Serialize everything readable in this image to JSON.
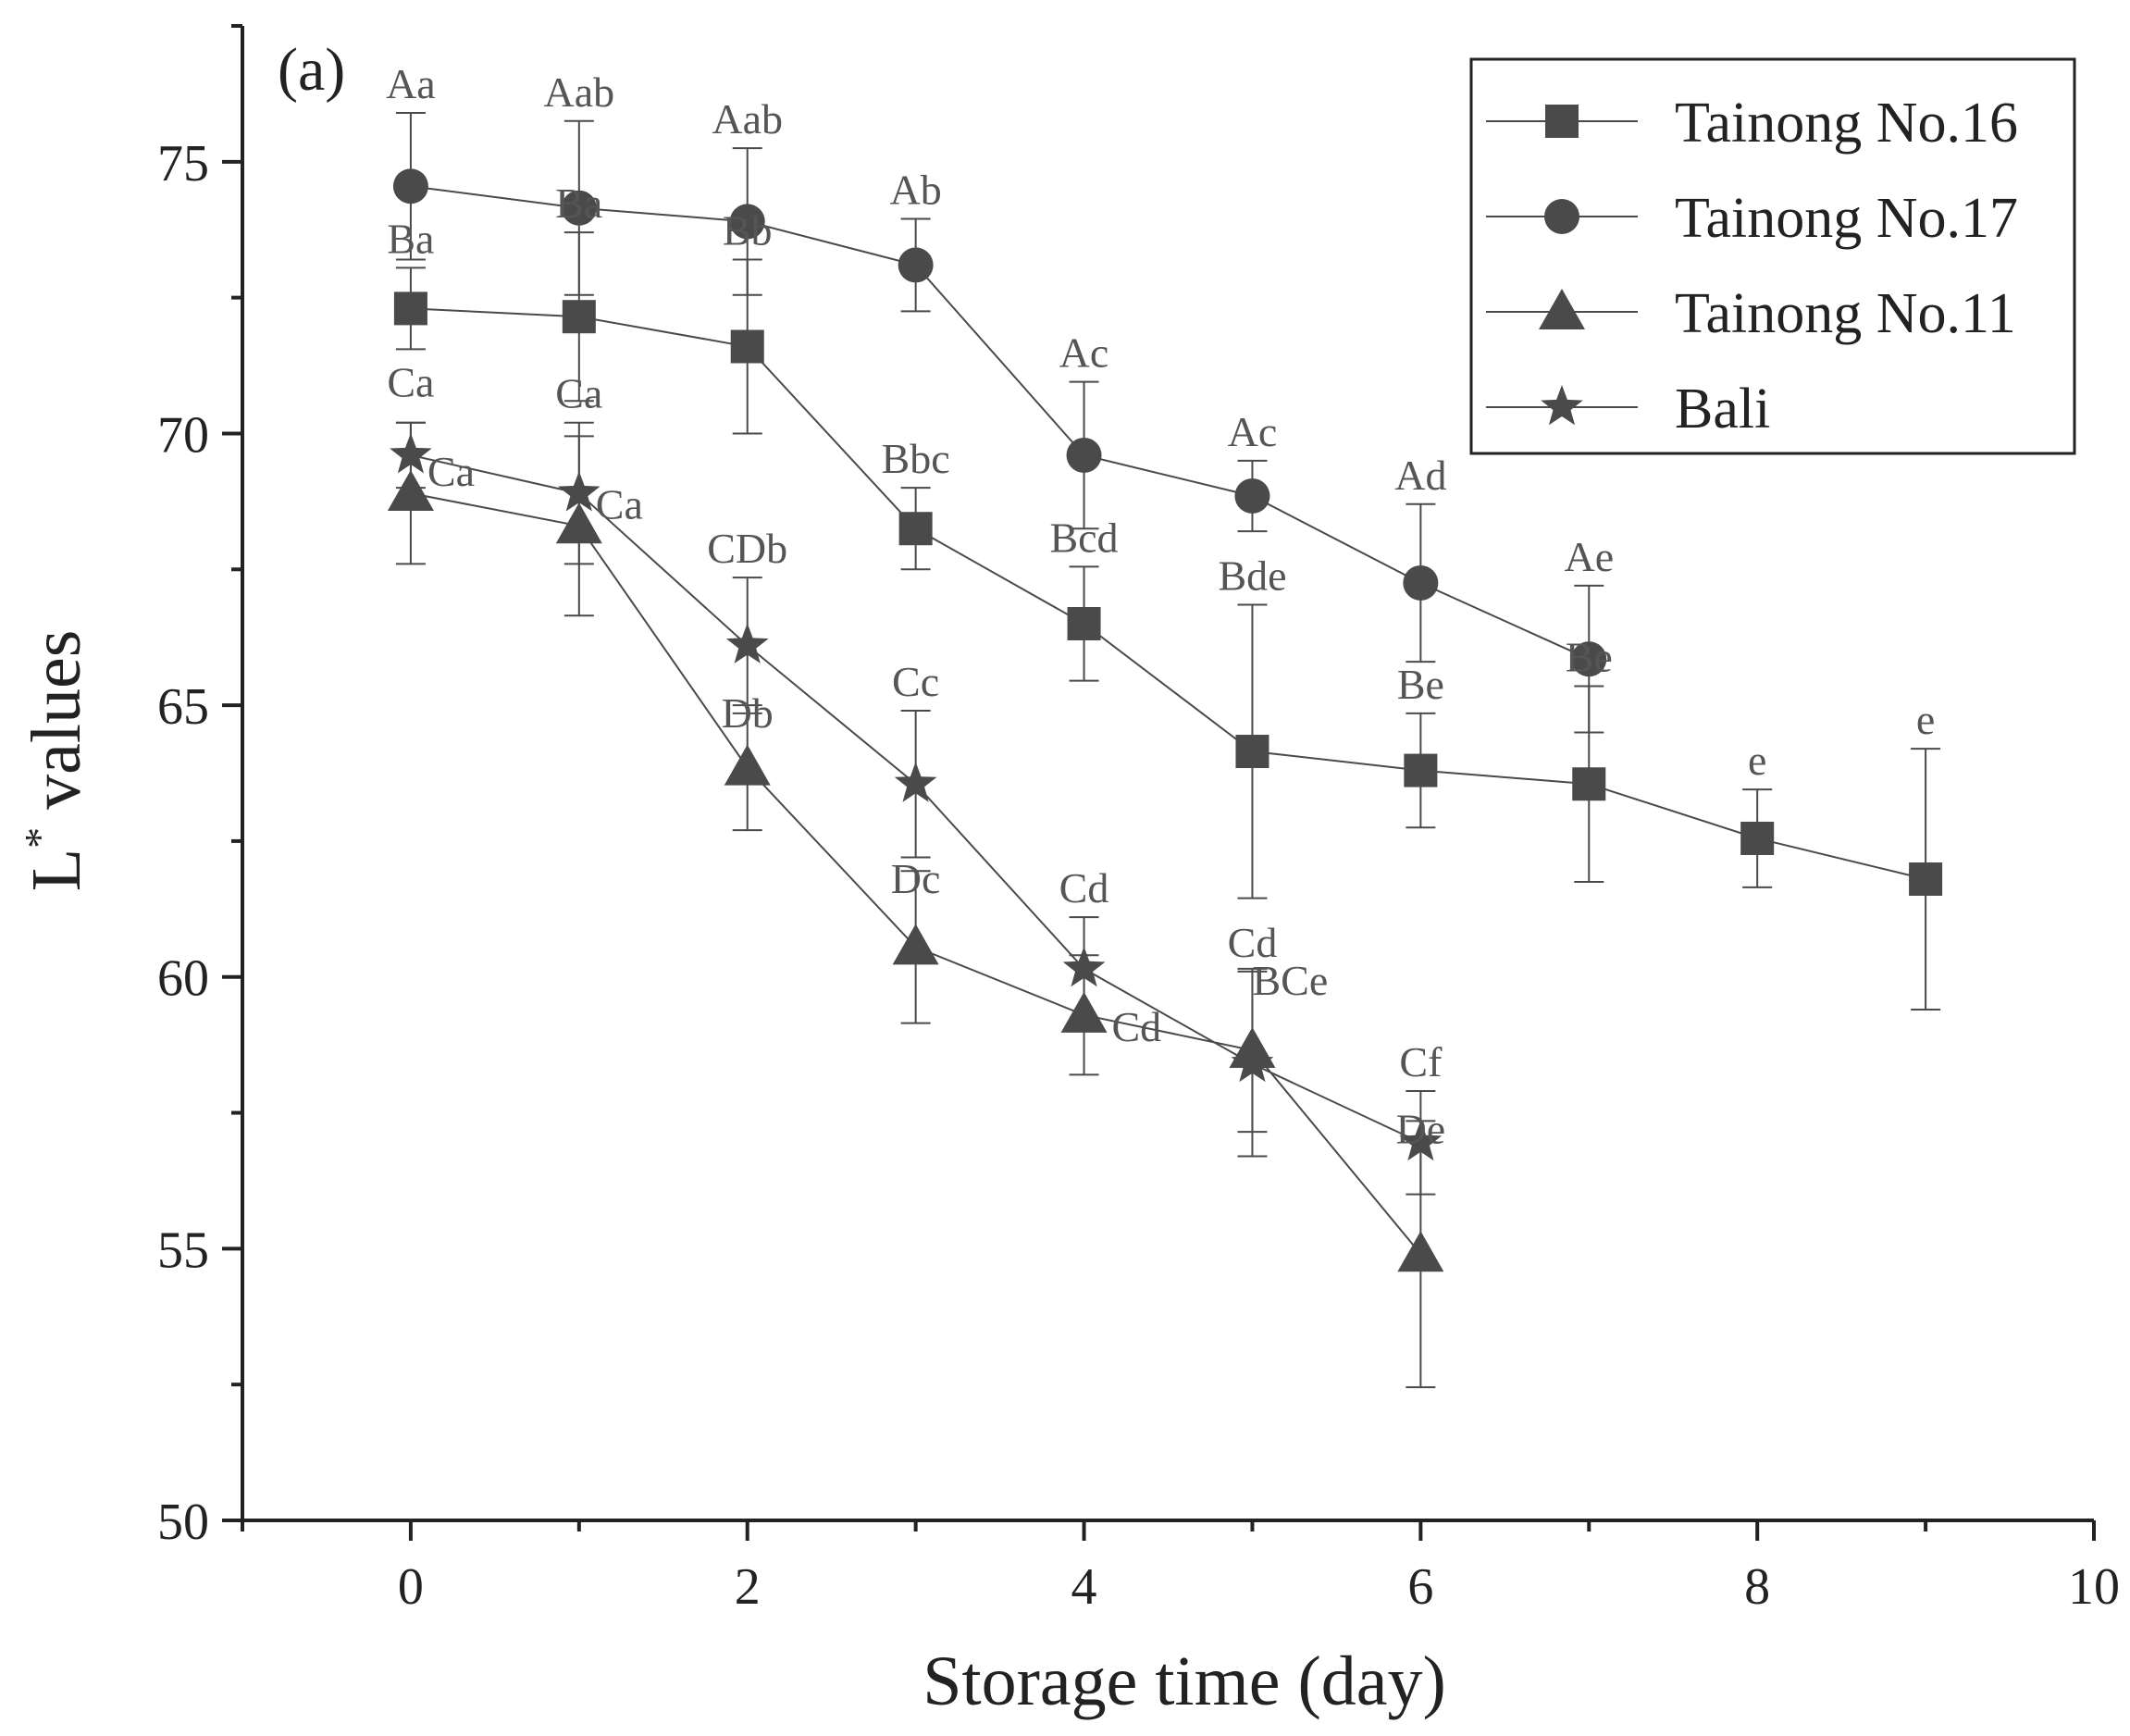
{
  "chart_data": {
    "type": "line",
    "panel_label": "(a)",
    "xlabel": "Storage time (day)",
    "ylabel": "L",
    "ylabel_superscript": "*",
    "ylabel_suffix": " values",
    "xlim": [
      -1,
      10
    ],
    "ylim": [
      50,
      77.5
    ],
    "xticks": [
      0,
      2,
      4,
      6,
      8,
      10
    ],
    "xtick_labels": [
      "0",
      "2",
      "4",
      "6",
      "8",
      "10"
    ],
    "xminor": [
      -1,
      1,
      3,
      5,
      7,
      9
    ],
    "yticks": [
      50,
      55,
      60,
      65,
      70,
      75
    ],
    "ytick_labels": [
      "50",
      "55",
      "60",
      "65",
      "70",
      "75"
    ],
    "yminor": [
      52.5,
      57.5,
      62.5,
      67.5,
      72.5,
      77.5
    ],
    "legend_position": "top-right",
    "series": [
      {
        "name": "Tainong No.16",
        "marker": "square",
        "x": [
          0,
          1,
          2,
          3,
          4,
          5,
          6,
          7,
          8,
          9
        ],
        "y": [
          72.3,
          72.15,
          71.6,
          68.25,
          66.5,
          64.15,
          63.8,
          63.55,
          62.55,
          61.8
        ],
        "err": [
          0.75,
          1.55,
          1.6,
          0.75,
          1.05,
          2.7,
          1.05,
          1.8,
          0.9,
          2.4
        ],
        "labels": [
          "Ba",
          "Ba",
          "Bb",
          "Bbc",
          "Bcd",
          "Bde",
          "Be",
          "Be",
          "e",
          "e"
        ]
      },
      {
        "name": "Tainong No.17",
        "marker": "circle",
        "x": [
          0,
          1,
          2,
          3,
          4,
          5,
          6,
          7
        ],
        "y": [
          74.55,
          74.15,
          73.9,
          73.1,
          69.6,
          68.85,
          67.25,
          65.85
        ],
        "err": [
          1.35,
          1.6,
          1.35,
          0.85,
          1.35,
          0.65,
          1.45,
          1.35
        ],
        "labels": [
          "Aa",
          "Aab",
          "Aab",
          "Ab",
          "Ac",
          "Ac",
          "Ad",
          "Ae"
        ]
      },
      {
        "name": "Tainong No.11",
        "marker": "triangle",
        "x": [
          0,
          1,
          2,
          3,
          4,
          5,
          6
        ],
        "y": [
          68.9,
          68.3,
          63.85,
          60.55,
          59.3,
          58.65,
          54.9
        ],
        "err": [
          1.3,
          1.65,
          1.15,
          1.4,
          1.1,
          1.5,
          2.45
        ],
        "labels": [
          "Ca",
          "Ca",
          "Db",
          "Dc",
          "Cd",
          "BCe",
          "De"
        ]
      },
      {
        "name": "Bali",
        "marker": "star",
        "x": [
          0,
          1,
          2,
          3,
          4,
          5,
          6
        ],
        "y": [
          69.6,
          68.9,
          66.1,
          63.55,
          60.15,
          58.4,
          56.95
        ],
        "err": [
          0.6,
          1.3,
          1.25,
          1.35,
          0.95,
          1.7,
          0.95
        ],
        "labels": [
          "Ca",
          "Ca",
          "CDb",
          "Cc",
          "Cd",
          "Cd",
          "Cf"
        ]
      }
    ],
    "colors": {
      "series": "#4a4a4a",
      "axis": "#222222",
      "label": "#555555"
    }
  }
}
